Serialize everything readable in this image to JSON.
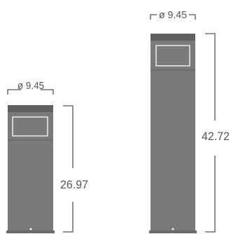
{
  "palette": {
    "body": "#7a7a7a",
    "band": "#5f5f5f",
    "window_frame": "#ececec",
    "dimension_line": "#555555",
    "background": "#ffffff"
  },
  "bollards": [
    {
      "diameter_label": "ø 9.45",
      "height_label": "26.97"
    },
    {
      "diameter_label": "ø 9.45",
      "height_label": "42.72"
    }
  ]
}
